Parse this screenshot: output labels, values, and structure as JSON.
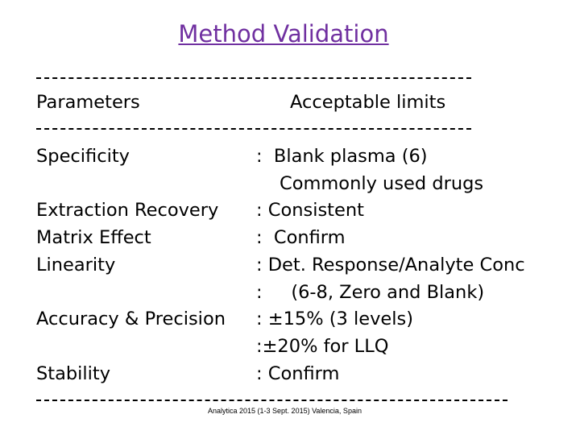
{
  "header": {
    "title": "Method Validation",
    "col_parameter": "Parameters",
    "col_limits": "Acceptable limits"
  },
  "rows": [
    {
      "parameter": "Specificity",
      "limit": ":  Blank plasma (6)"
    },
    {
      "limit": "Commonly used drugs"
    },
    {
      "parameter": "Extraction Recovery",
      "limit": ": Consistent"
    },
    {
      "parameter": "Matrix Effect",
      "limit": ":  Confirm"
    },
    {
      "parameter": "Linearity",
      "limit": ": Det. Response/Analyte Conc"
    },
    {
      "limit": ":     (6-8, Zero and Blank)"
    },
    {
      "parameter": "Accuracy & Precision",
      "limit": ": ±15% (3 levels)"
    },
    {
      "limit": ":±20% for LLQ"
    },
    {
      "parameter": "Stability",
      "limit": ": Confirm"
    }
  ],
  "footer": "Analytica 2015 (1-3 Sept. 2015) Valencia, Spain"
}
